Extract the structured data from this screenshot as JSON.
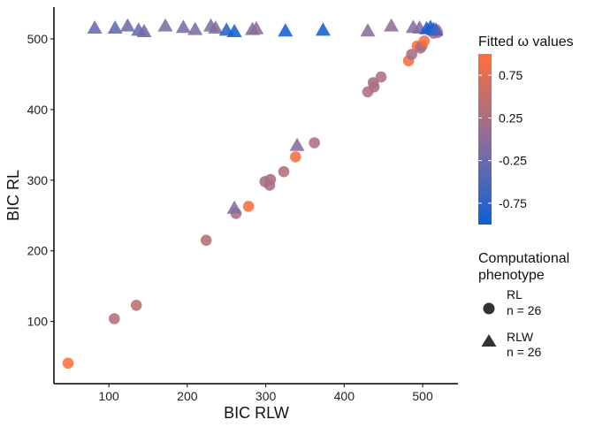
{
  "chart_data": {
    "type": "scatter",
    "xlabel": "BIC RLW",
    "ylabel": "BIC RL",
    "xlim": [
      30,
      545
    ],
    "ylim": [
      12,
      545
    ],
    "x_ticks": [
      100,
      200,
      300,
      400,
      500
    ],
    "y_ticks": [
      100,
      200,
      300,
      400,
      500
    ],
    "grid": false,
    "color_legend": {
      "title": "Fitted ω values",
      "range": [
        -1.0,
        1.0
      ],
      "ticks": [
        0.75,
        0.25,
        -0.25,
        -0.75
      ],
      "tick_labels": [
        "0.75",
        "0.25",
        "-0.25",
        "-0.75"
      ],
      "low_color": "#0F5FD6",
      "mid_color": "#8C6E9A",
      "high_color": "#FF6E3A"
    },
    "shape_legend": {
      "title_line1": "Computational",
      "title_line2": "phenotype",
      "items": [
        {
          "shape": "circle",
          "line1": "RL",
          "line2": "n = 26"
        },
        {
          "shape": "triangle",
          "line1": "RLW",
          "line2": "n = 26"
        }
      ]
    },
    "legend_position": "right",
    "series": [
      {
        "shape": "circle",
        "points": [
          {
            "x": 48,
            "y": 41,
            "w": 1.0
          },
          {
            "x": 107,
            "y": 104,
            "w": 0.35
          },
          {
            "x": 135,
            "y": 123,
            "w": 0.4
          },
          {
            "x": 224,
            "y": 215,
            "w": 0.35
          },
          {
            "x": 262,
            "y": 253,
            "w": 0.3
          },
          {
            "x": 278,
            "y": 263,
            "w": 0.95
          },
          {
            "x": 299,
            "y": 298,
            "w": 0.2
          },
          {
            "x": 305,
            "y": 293,
            "w": 0.25
          },
          {
            "x": 306,
            "y": 301,
            "w": 0.25
          },
          {
            "x": 323,
            "y": 312,
            "w": 0.35
          },
          {
            "x": 338,
            "y": 333,
            "w": 0.95
          },
          {
            "x": 362,
            "y": 353,
            "w": 0.3
          },
          {
            "x": 430,
            "y": 425,
            "w": 0.3
          },
          {
            "x": 437,
            "y": 438,
            "w": 0.2
          },
          {
            "x": 438,
            "y": 432,
            "w": 0.25
          },
          {
            "x": 447,
            "y": 446,
            "w": 0.3
          },
          {
            "x": 482,
            "y": 469,
            "w": 0.9
          },
          {
            "x": 486,
            "y": 478,
            "w": 0.2
          },
          {
            "x": 493,
            "y": 490,
            "w": 0.95
          },
          {
            "x": 497,
            "y": 487,
            "w": 0.3
          },
          {
            "x": 499,
            "y": 490,
            "w": 0.25
          },
          {
            "x": 502,
            "y": 497,
            "w": 0.95
          },
          {
            "x": 510,
            "y": 512,
            "w": 0.4
          },
          {
            "x": 514,
            "y": 508,
            "w": 0.3
          },
          {
            "x": 517,
            "y": 513,
            "w": 0.35
          },
          {
            "x": 519,
            "y": 509,
            "w": 0.3
          }
        ]
      },
      {
        "shape": "triangle",
        "points": [
          {
            "x": 82,
            "y": 515,
            "w": -0.3
          },
          {
            "x": 108,
            "y": 515,
            "w": -0.35
          },
          {
            "x": 124,
            "y": 518,
            "w": -0.2
          },
          {
            "x": 138,
            "y": 512,
            "w": -0.3
          },
          {
            "x": 145,
            "y": 510,
            "w": -0.25
          },
          {
            "x": 172,
            "y": 518,
            "w": -0.1
          },
          {
            "x": 210,
            "y": 513,
            "w": -0.1
          },
          {
            "x": 236,
            "y": 515,
            "w": -0.05
          },
          {
            "x": 250,
            "y": 512,
            "w": -0.8
          },
          {
            "x": 260,
            "y": 510,
            "w": -0.95
          },
          {
            "x": 283,
            "y": 513,
            "w": -0.1
          },
          {
            "x": 288,
            "y": 514,
            "w": 0.0
          },
          {
            "x": 325,
            "y": 511,
            "w": -0.95
          },
          {
            "x": 373,
            "y": 512,
            "w": -0.95
          },
          {
            "x": 430,
            "y": 511,
            "w": -0.05
          },
          {
            "x": 460,
            "y": 518,
            "w": 0.05
          },
          {
            "x": 488,
            "y": 516,
            "w": -0.05
          },
          {
            "x": 496,
            "y": 515,
            "w": -0.1
          },
          {
            "x": 505,
            "y": 514,
            "w": -0.95
          },
          {
            "x": 510,
            "y": 516,
            "w": -0.95
          },
          {
            "x": 514,
            "y": 513,
            "w": -0.9
          },
          {
            "x": 517,
            "y": 512,
            "w": -0.6
          },
          {
            "x": 260,
            "y": 260,
            "w": -0.1
          },
          {
            "x": 340,
            "y": 349,
            "w": -0.05
          },
          {
            "x": 230,
            "y": 518,
            "w": -0.1
          },
          {
            "x": 195,
            "y": 516,
            "w": -0.15
          }
        ]
      }
    ]
  }
}
